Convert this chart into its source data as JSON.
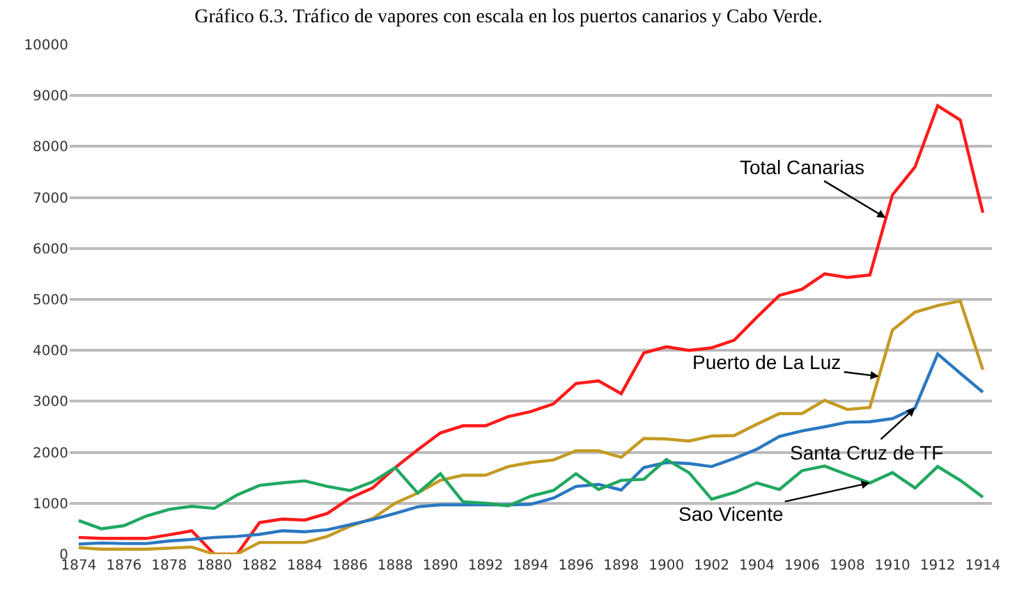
{
  "chart_data": {
    "type": "line",
    "title": "Gráfico 6.3. Tráfico de vapores con escala en los puertos canarios y Cabo Verde.",
    "x": [
      1874,
      1875,
      1876,
      1877,
      1878,
      1879,
      1880,
      1881,
      1882,
      1883,
      1884,
      1885,
      1886,
      1887,
      1888,
      1889,
      1890,
      1891,
      1892,
      1893,
      1894,
      1895,
      1896,
      1897,
      1898,
      1899,
      1900,
      1901,
      1902,
      1903,
      1904,
      1905,
      1906,
      1907,
      1908,
      1909,
      1910,
      1911,
      1912,
      1913,
      1914
    ],
    "series": [
      {
        "color": "#ff1a1a",
        "values": [
          330,
          310,
          310,
          310,
          380,
          460,
          0,
          0,
          620,
          690,
          670,
          800,
          1100,
          1300,
          1700,
          2050,
          2380,
          2520,
          2520,
          2700,
          2800,
          2950,
          3350,
          3400,
          3150,
          3950,
          4070,
          4000,
          4050,
          4200,
          4650,
          5080,
          5200,
          5500,
          5430,
          5480,
          7050,
          7600,
          8800,
          8520,
          6700
        ]
      },
      {
        "color": "#c49a22",
        "values": [
          130,
          100,
          100,
          100,
          120,
          140,
          0,
          0,
          230,
          230,
          230,
          350,
          550,
          700,
          1000,
          1200,
          1450,
          1550,
          1550,
          1720,
          1800,
          1850,
          2030,
          2030,
          1900,
          2270,
          2260,
          2220,
          2320,
          2330,
          2550,
          2760,
          2760,
          3020,
          2840,
          2880,
          4400,
          4750,
          4880,
          4970,
          3620
        ]
      },
      {
        "color": "#2a78c2",
        "values": [
          200,
          220,
          210,
          210,
          260,
          290,
          330,
          350,
          390,
          460,
          440,
          480,
          580,
          680,
          800,
          930,
          970,
          970,
          970,
          970,
          980,
          1100,
          1330,
          1370,
          1260,
          1700,
          1800,
          1780,
          1720,
          1880,
          2060,
          2310,
          2420,
          2500,
          2590,
          2600,
          2660,
          2870,
          3930,
          3550,
          3180
        ]
      },
      {
        "color": "#20a860",
        "values": [
          660,
          500,
          560,
          750,
          880,
          940,
          900,
          1160,
          1350,
          1400,
          1440,
          1330,
          1250,
          1420,
          1700,
          1200,
          1580,
          1030,
          1000,
          950,
          1140,
          1250,
          1580,
          1270,
          1450,
          1470,
          1860,
          1600,
          1080,
          1210,
          1400,
          1270,
          1640,
          1730,
          1560,
          1400,
          1600,
          1300,
          1720,
          1450,
          1120
        ]
      }
    ],
    "annotations": [
      {
        "text": "Total Canarias",
        "x": 1909.7,
        "y": 6600
      },
      {
        "text": "Puerto de La Luz",
        "x": 1909.4,
        "y": 3490
      },
      {
        "text": "Santa Cruz de TF",
        "x": 1911,
        "y": 2870
      },
      {
        "text": "Sao Vicente",
        "x": 1909,
        "y": 1400
      }
    ],
    "xlim": [
      1873.6,
      1914.4
    ],
    "xticks": [
      1874,
      1876,
      1878,
      1880,
      1882,
      1884,
      1886,
      1888,
      1890,
      1892,
      1894,
      1896,
      1898,
      1900,
      1902,
      1904,
      1906,
      1908,
      1910,
      1912,
      1914
    ],
    "ylim": [
      0,
      10000
    ],
    "yticks": [
      0,
      1000,
      2000,
      3000,
      4000,
      5000,
      6000,
      7000,
      8000,
      9000,
      10000
    ],
    "grid": "y",
    "marker": "none",
    "line_style": "solid"
  }
}
